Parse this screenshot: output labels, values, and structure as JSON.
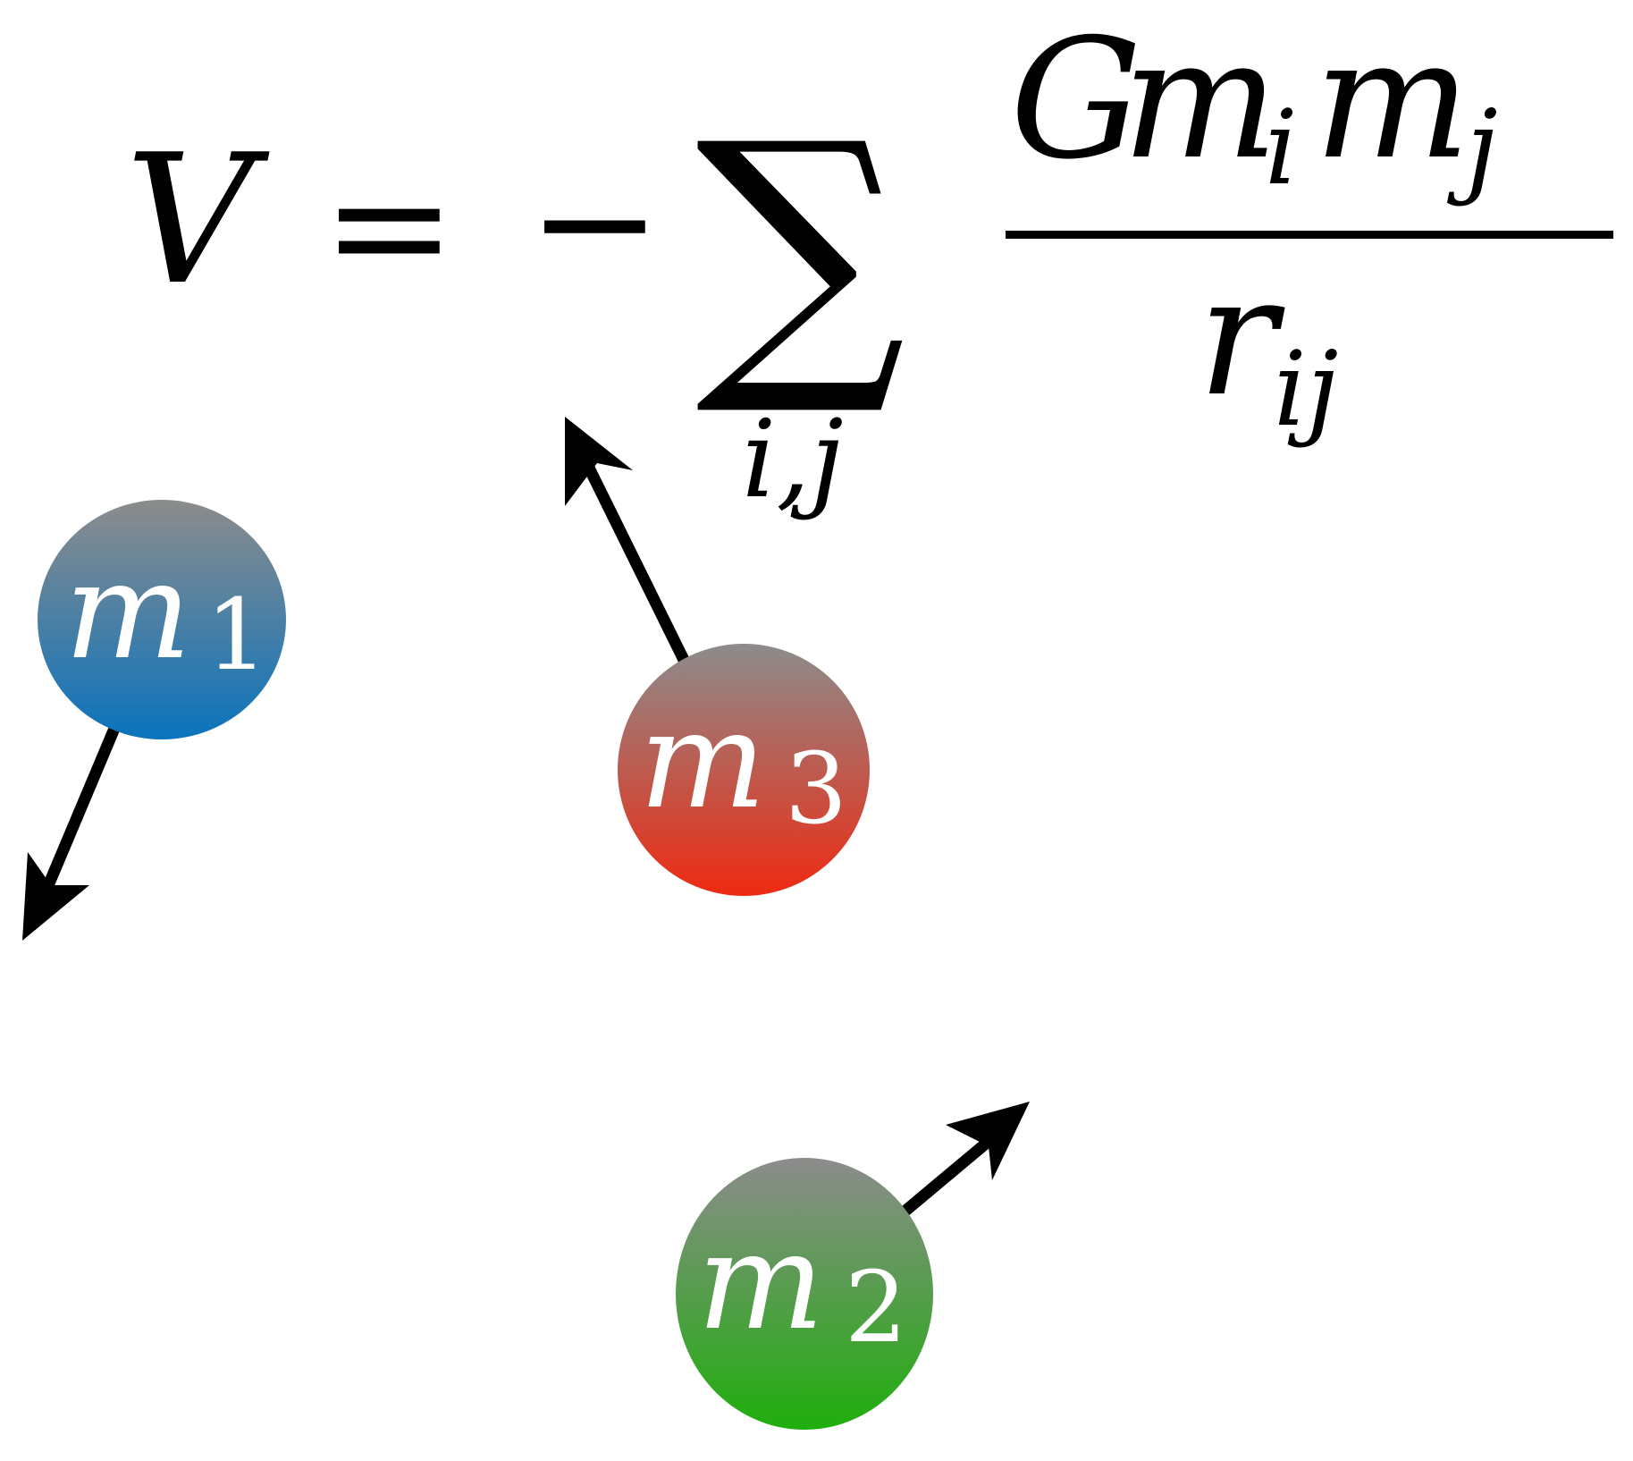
{
  "formula": {
    "lhs": "V",
    "equals": "=",
    "minus": "−",
    "sum_symbol": "∑",
    "sum_index": "i,j",
    "numerator": {
      "G": "G",
      "m1": "m",
      "m1_sub": "i",
      "m2": "m",
      "m2_sub": "j"
    },
    "denominator": {
      "r": "r",
      "r_sub": "ij"
    }
  },
  "masses": [
    {
      "id": "m1",
      "symbol": "m",
      "subscript": "1",
      "color_top": "#8c8c8c",
      "color_bottom": "#0a73bd"
    },
    {
      "id": "m2",
      "symbol": "m",
      "subscript": "2",
      "color_top": "#8c8c8c",
      "color_bottom": "#1fae0c"
    },
    {
      "id": "m3",
      "symbol": "m",
      "subscript": "3",
      "color_top": "#8c8c8c",
      "color_bottom": "#ee2a12"
    }
  ],
  "colors": {
    "arrow": "#000000",
    "text": "#000000",
    "mass_text": "#ffffff"
  }
}
